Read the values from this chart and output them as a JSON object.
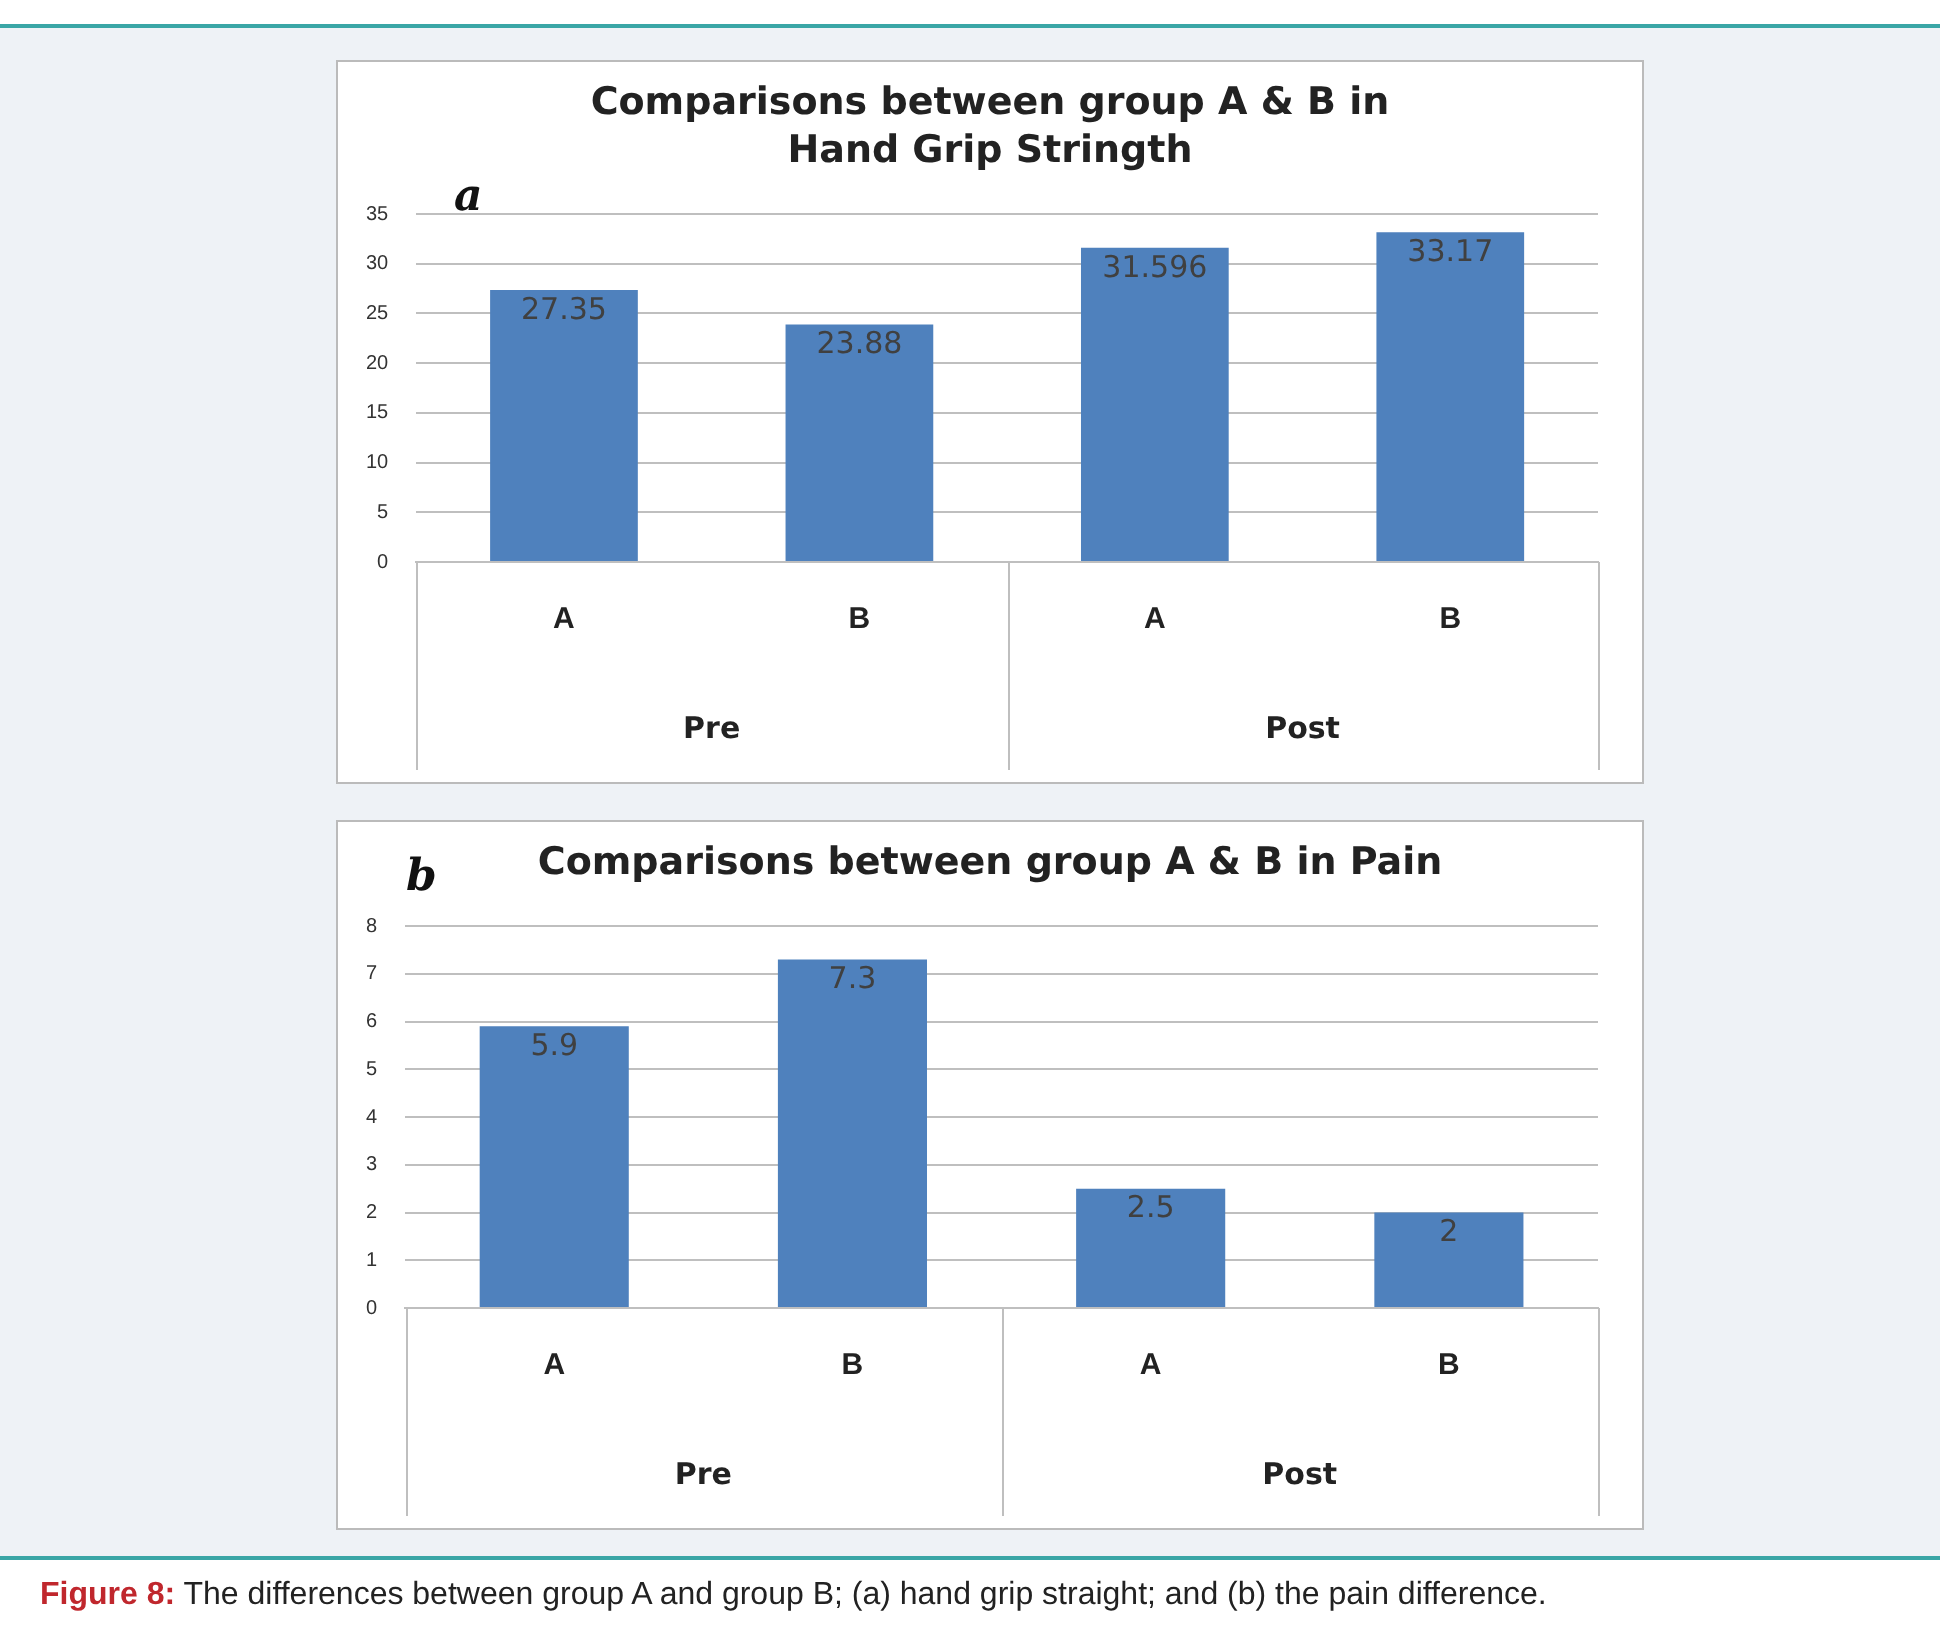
{
  "chart_data": [
    {
      "type": "bar",
      "title": "Comparisons between group A & B in Hand Grip Stringth",
      "categories": [
        "A",
        "B",
        "A",
        "B"
      ],
      "values": [
        27.35,
        23.88,
        31.596,
        33.17
      ],
      "color": "#4f81bd",
      "ylim": [
        0,
        35
      ],
      "yticks": [
        0,
        5,
        10,
        15,
        20,
        25,
        30,
        35
      ],
      "grid": "y",
      "legend": false,
      "data_labels": true,
      "annotations": [
        "a",
        "Pre",
        "Post"
      ]
    },
    {
      "type": "bar",
      "title": "Comparisons between group A & B in Pain",
      "categories": [
        "A",
        "B",
        "A",
        "B"
      ],
      "values": [
        5.9,
        7.3,
        2.5,
        2
      ],
      "color": "#4f81bd",
      "ylim": [
        0,
        8
      ],
      "yticks": [
        0,
        1,
        2,
        3,
        4,
        5,
        6,
        7,
        8
      ],
      "grid": "y",
      "legend": false,
      "data_labels": true,
      "annotations": [
        "b",
        "Pre",
        "Post",
        "Figure 8: The differences between group A and group B; (a) hand grip straight; and (b) the pain difference."
      ]
    }
  ]
}
